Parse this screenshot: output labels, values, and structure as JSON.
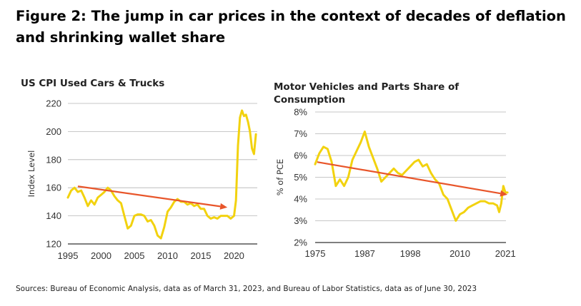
{
  "figure": {
    "title": "Figure 2: The jump in car prices in the context of decades of deflation and shrinking wallet share",
    "source": "Sources: Bureau of Economic Analysis, data as of March 31, 2023, and Bureau of Labor Statistics, data as of June 30, 2023"
  },
  "colors": {
    "series": "#f2d20f",
    "trend": "#e8552a",
    "grid": "#b5b5b5",
    "axis": "#333333"
  },
  "chart_data": [
    {
      "type": "line",
      "title": "US CPI Used Cars & Trucks",
      "xlabel": "",
      "ylabel": "Index Level",
      "xlim": [
        1995,
        2023.5
      ],
      "ylim": [
        120,
        220
      ],
      "x_ticks": [
        1995,
        2000,
        2005,
        2010,
        2015,
        2020
      ],
      "x_tick_labels": [
        "1995",
        "2000",
        "2005",
        "2010",
        "2015",
        "2020"
      ],
      "y_ticks": [
        120,
        140,
        160,
        180,
        200,
        220
      ],
      "y_tick_labels": [
        "120",
        "140",
        "160",
        "180",
        "200",
        "220"
      ],
      "grid": "horizontal",
      "series": [
        {
          "role": "data",
          "x": [
            1995,
            1995.5,
            1996,
            1996.5,
            1997,
            1997.5,
            1998,
            1998.5,
            1999,
            1999.5,
            2000,
            2000.5,
            2001,
            2001.5,
            2002,
            2002.5,
            2003,
            2003.5,
            2004,
            2004.5,
            2005,
            2005.5,
            2006,
            2006.5,
            2007,
            2007.5,
            2008,
            2008.5,
            2009,
            2009.5,
            2010,
            2010.5,
            2011,
            2011.5,
            2012,
            2012.5,
            2013,
            2013.5,
            2014,
            2014.5,
            2015,
            2015.5,
            2016,
            2016.5,
            2017,
            2017.5,
            2018,
            2018.5,
            2019,
            2019.5,
            2020,
            2020.3,
            2020.6,
            2020.9,
            2021.2,
            2021.5,
            2021.8,
            2022.1,
            2022.4,
            2022.7,
            2023,
            2023.3
          ],
          "y": [
            153,
            158,
            160,
            157,
            158,
            153,
            147,
            151,
            148,
            153,
            155,
            157,
            160,
            158,
            154,
            151,
            149,
            140,
            131,
            133,
            140,
            141,
            141,
            140,
            136,
            137,
            133,
            126,
            124,
            132,
            143,
            146,
            150,
            152,
            150,
            150,
            148,
            149,
            147,
            148,
            145,
            145,
            140,
            138,
            139,
            138,
            140,
            140,
            140,
            138,
            140,
            151,
            190,
            210,
            215,
            211,
            212,
            207,
            200,
            188,
            184,
            198
          ]
        },
        {
          "role": "trend",
          "x": [
            1996.5,
            2019
          ],
          "y": [
            161,
            146
          ]
        }
      ]
    },
    {
      "type": "line",
      "title": "Motor Vehicles and Parts Share of Consumption",
      "xlabel": "",
      "ylabel": "% of PCE",
      "xlim": [
        1975,
        2022
      ],
      "ylim": [
        2,
        8
      ],
      "x_ticks": [
        1975,
        1987,
        1998,
        2010,
        2021
      ],
      "x_tick_labels": [
        "1975",
        "1987",
        "1998",
        "2010",
        "2021"
      ],
      "y_ticks": [
        2,
        3,
        4,
        5,
        6,
        7,
        8
      ],
      "y_tick_labels": [
        "2%",
        "3%",
        "4%",
        "5%",
        "6%",
        "7%",
        "8%"
      ],
      "grid": "horizontal",
      "series": [
        {
          "role": "data",
          "x": [
            1975,
            1976,
            1977,
            1978,
            1979,
            1980,
            1981,
            1982,
            1983,
            1984,
            1985,
            1986,
            1987,
            1988,
            1989,
            1990,
            1991,
            1992,
            1993,
            1994,
            1995,
            1996,
            1997,
            1998,
            1999,
            2000,
            2001,
            2002,
            2003,
            2004,
            2005,
            2006,
            2007,
            2008,
            2009,
            2010,
            2011,
            2012,
            2013,
            2014,
            2015,
            2016,
            2017,
            2018,
            2019,
            2019.5,
            2020,
            2020.5,
            2021,
            2021.5
          ],
          "y": [
            5.6,
            6.1,
            6.4,
            6.3,
            5.7,
            4.6,
            4.9,
            4.6,
            5.0,
            5.8,
            6.2,
            6.6,
            7.1,
            6.4,
            5.9,
            5.4,
            4.8,
            5.0,
            5.2,
            5.4,
            5.2,
            5.1,
            5.3,
            5.5,
            5.7,
            5.8,
            5.5,
            5.6,
            5.2,
            4.9,
            4.7,
            4.2,
            4.0,
            3.5,
            3.0,
            3.3,
            3.4,
            3.6,
            3.7,
            3.8,
            3.9,
            3.9,
            3.8,
            3.8,
            3.7,
            3.4,
            3.8,
            4.6,
            4.3,
            4.3
          ]
        },
        {
          "role": "trend",
          "x": [
            1975.5,
            2021.5
          ],
          "y": [
            5.7,
            4.2
          ]
        }
      ]
    }
  ]
}
